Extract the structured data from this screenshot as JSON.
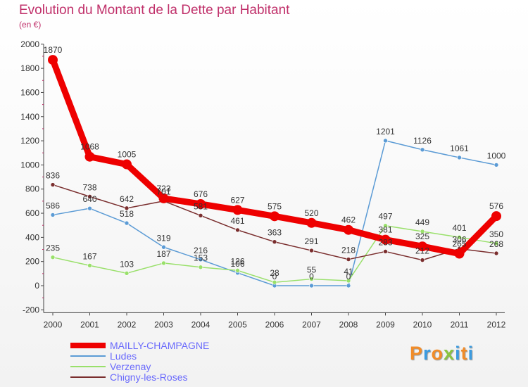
{
  "header": {
    "title": "Evolution du Montant de la Dette par Habitant",
    "subtitle": "(en €)"
  },
  "logo": {
    "text": "Proxiti",
    "letters": [
      {
        "ch": "P",
        "color": "#f28c28"
      },
      {
        "ch": "r",
        "color": "#3b9be0"
      },
      {
        "ch": "o",
        "color": "#f28c28"
      },
      {
        "ch": "x",
        "color": "#8ac43f"
      },
      {
        "ch": "i",
        "color": "#3b9be0"
      },
      {
        "ch": "t",
        "color": "#f28c28"
      },
      {
        "ch": "i",
        "color": "#3b9be0"
      }
    ]
  },
  "chart_data": {
    "type": "line",
    "title": "Evolution du Montant de la Dette par Habitant",
    "subtitle": "(en €)",
    "x": [
      "2000",
      "2001",
      "2002",
      "2003",
      "2004",
      "2005",
      "2006",
      "2007",
      "2008",
      "2009",
      "2010",
      "2011",
      "2012"
    ],
    "ylim": [
      -200,
      2000
    ],
    "yticks": [
      -200,
      0,
      200,
      400,
      600,
      800,
      1000,
      1200,
      1400,
      1600,
      1800,
      2000
    ],
    "grid": false,
    "legend_position": "bottom-left",
    "series": [
      {
        "name": "MAILLY-CHAMPAGNE",
        "color": "#ee0000",
        "emphasis": true,
        "values": [
          1870,
          1068,
          1005,
          723,
          676,
          627,
          575,
          520,
          462,
          381,
          325,
          265,
          576
        ],
        "labels": [
          "1870",
          "1068",
          "1005",
          "723",
          "676",
          "627",
          "575",
          "520",
          "462",
          "381",
          "325",
          "265",
          "576"
        ]
      },
      {
        "name": "Ludes",
        "color": "#5b9bd5",
        "emphasis": false,
        "values": [
          586,
          640,
          518,
          319,
          216,
          106,
          0,
          0,
          0,
          1201,
          1126,
          1061,
          1000
        ],
        "labels": [
          "586",
          "640",
          "518",
          "319",
          "216",
          "106",
          "0",
          "0",
          "0",
          "1201",
          "1126",
          "1061",
          "1000"
        ]
      },
      {
        "name": "Verzenay",
        "color": "#99e06a",
        "emphasis": false,
        "values": [
          235,
          167,
          103,
          187,
          153,
          126,
          28,
          55,
          41,
          497,
          449,
          401,
          350
        ],
        "labels": [
          "235",
          "167",
          "103",
          "187",
          "153",
          "126",
          "28",
          "55",
          "41",
          "497",
          "449",
          "401",
          "350"
        ]
      },
      {
        "name": "Chigny-les-Roses",
        "color": "#7a2e2e",
        "emphasis": false,
        "values": [
          836,
          738,
          642,
          701,
          581,
          461,
          363,
          291,
          218,
          283,
          212,
          306,
          268
        ],
        "labels": [
          "836",
          "738",
          "642",
          "701",
          "581",
          "461",
          "363",
          "291",
          "218",
          "283",
          "212",
          "306",
          "268"
        ]
      }
    ]
  }
}
